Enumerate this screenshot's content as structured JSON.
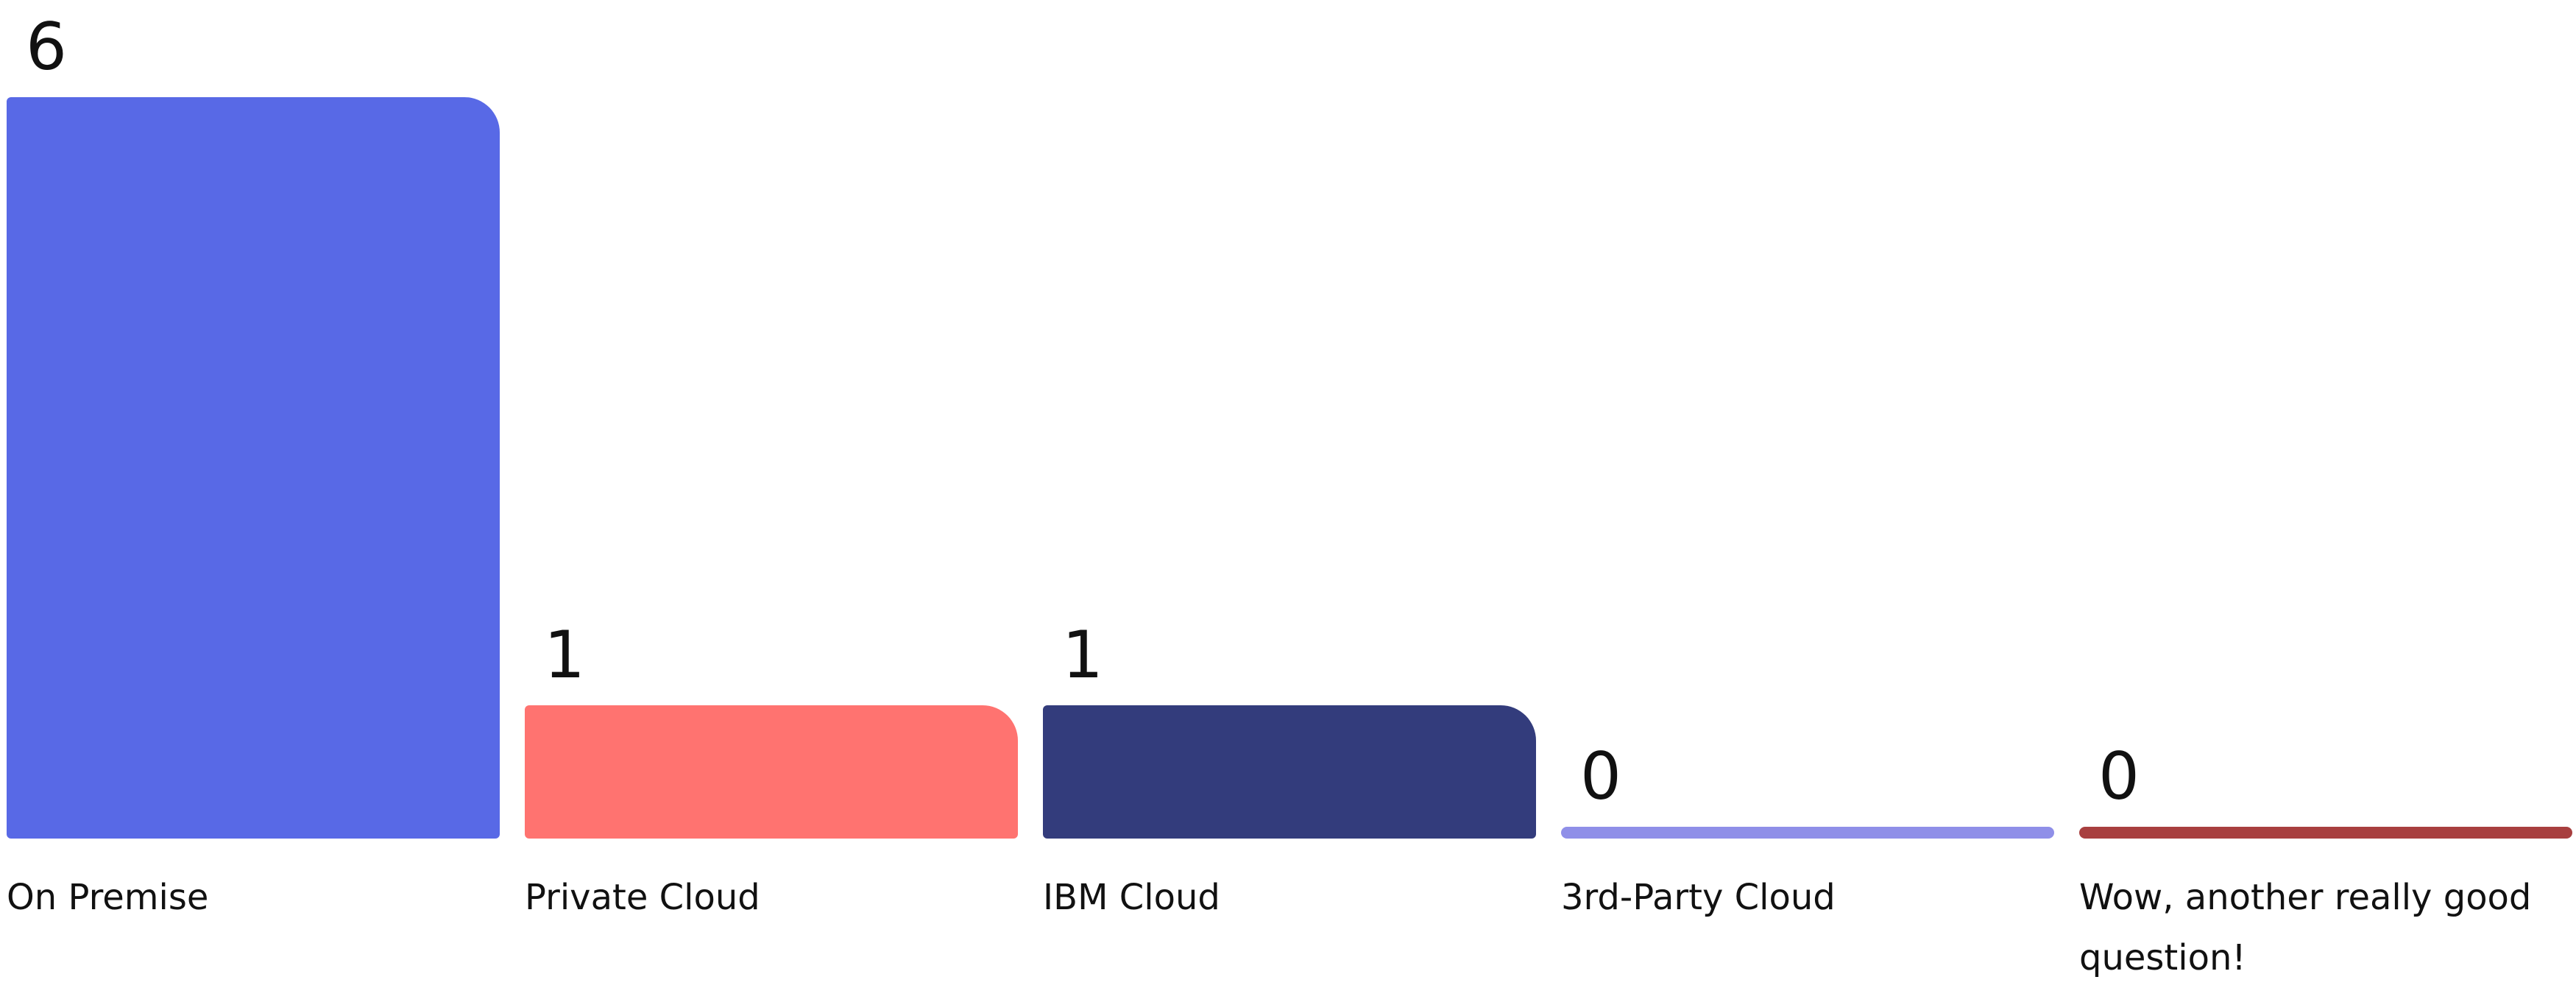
{
  "chart_data": {
    "type": "bar",
    "categories": [
      "On Premise",
      "Private Cloud",
      "IBM Cloud",
      "3rd-Party Cloud",
      "Wow, another really good question!"
    ],
    "values": [
      6,
      1,
      1,
      0,
      0
    ],
    "colors": [
      "#5869e6",
      "#ff7370",
      "#333c7c",
      "#8f8fe8",
      "#a83f3f"
    ]
  }
}
